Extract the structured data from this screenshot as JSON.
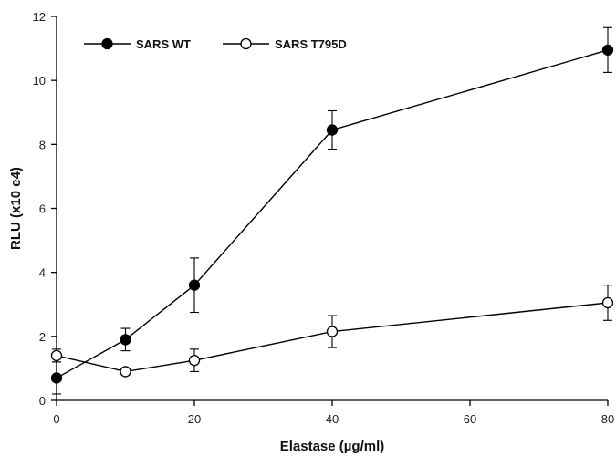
{
  "chart_data": {
    "type": "line",
    "xlabel": "Elastase (µg/ml)",
    "ylabel": "RLU (x10 e4)",
    "xlim": [
      0,
      80
    ],
    "ylim": [
      0,
      12
    ],
    "xticks": [
      0,
      20,
      40,
      60,
      80
    ],
    "yticks": [
      0,
      2,
      4,
      6,
      8,
      10,
      12
    ],
    "grid": false,
    "legend_position": "top-left",
    "series": [
      {
        "name": "SARS WT",
        "marker": "filled-circle",
        "color": "#000000",
        "x": [
          0,
          10,
          20,
          40,
          80
        ],
        "y": [
          0.7,
          1.9,
          3.6,
          8.45,
          10.95
        ],
        "error": [
          0.5,
          0.35,
          0.85,
          0.6,
          0.7
        ]
      },
      {
        "name": "SARS T795D",
        "marker": "open-circle",
        "color": "#000000",
        "x": [
          0,
          10,
          20,
          40,
          80
        ],
        "y": [
          1.4,
          0.9,
          1.25,
          2.15,
          3.05
        ],
        "error": [
          0.2,
          0.1,
          0.35,
          0.5,
          0.55
        ]
      }
    ]
  }
}
